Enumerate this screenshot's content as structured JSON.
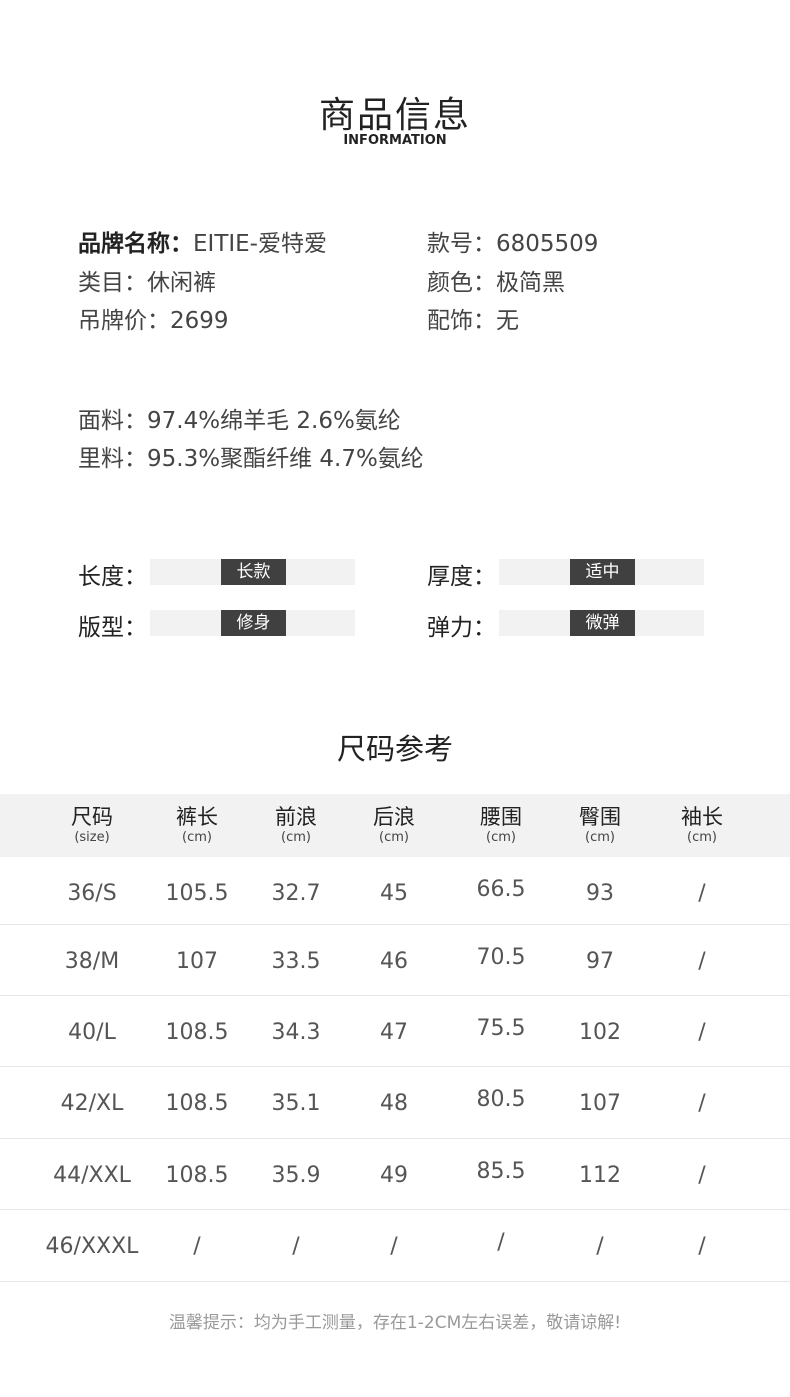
{
  "header": {
    "title": "商品信息",
    "subtitle": "INFORMATION"
  },
  "info": [
    {
      "label": "品牌名称：",
      "value": "EITIE-爱特爱",
      "bold": true
    },
    {
      "label": "款号：",
      "value": "6805509"
    },
    {
      "label": "类目：",
      "value": "休闲裤"
    },
    {
      "label": "颜色：",
      "value": "极简黑"
    },
    {
      "label": "吊牌价：",
      "value": "2699"
    },
    {
      "label": "配饰：",
      "value": "无"
    }
  ],
  "fabric": [
    {
      "label": "面料：",
      "value": "97.4%绵羊毛 2.6%氨纶"
    },
    {
      "label": "里料：",
      "value": "95.3%聚酯纤维 4.7%氨纶"
    }
  ],
  "attributes": [
    {
      "label": "长度：",
      "value": "长款"
    },
    {
      "label": "厚度：",
      "value": "适中"
    },
    {
      "label": "版型：",
      "value": "修身"
    },
    {
      "label": "弹力：",
      "value": "微弹"
    }
  ],
  "size_chart": {
    "title": "尺码参考",
    "headers": [
      {
        "name": "尺码",
        "unit": "(size)"
      },
      {
        "name": "裤长",
        "unit": "(cm)"
      },
      {
        "name": "前浪",
        "unit": "(cm)"
      },
      {
        "name": "后浪",
        "unit": "(cm)"
      },
      {
        "name": "腰围",
        "unit": "(cm)"
      },
      {
        "name": "臀围",
        "unit": "(cm)"
      },
      {
        "name": "袖长",
        "unit": "(cm)"
      }
    ],
    "rows": [
      [
        "36/S",
        "105.5",
        "32.7",
        "45",
        "66.5",
        "93",
        "/"
      ],
      [
        "38/M",
        "107",
        "33.5",
        "46",
        "70.5",
        "97",
        "/"
      ],
      [
        "40/L",
        "108.5",
        "34.3",
        "47",
        "75.5",
        "102",
        "/"
      ],
      [
        "42/XL",
        "108.5",
        "35.1",
        "48",
        "80.5",
        "107",
        "/"
      ],
      [
        "44/XXL",
        "108.5",
        "35.9",
        "49",
        "85.5",
        "112",
        "/"
      ],
      [
        "46/XXXL",
        "/",
        "/",
        "/",
        "/",
        "/",
        "/"
      ]
    ]
  },
  "note": "温馨提示：均为手工测量，存在1-2CM左右误差，敬请谅解!"
}
